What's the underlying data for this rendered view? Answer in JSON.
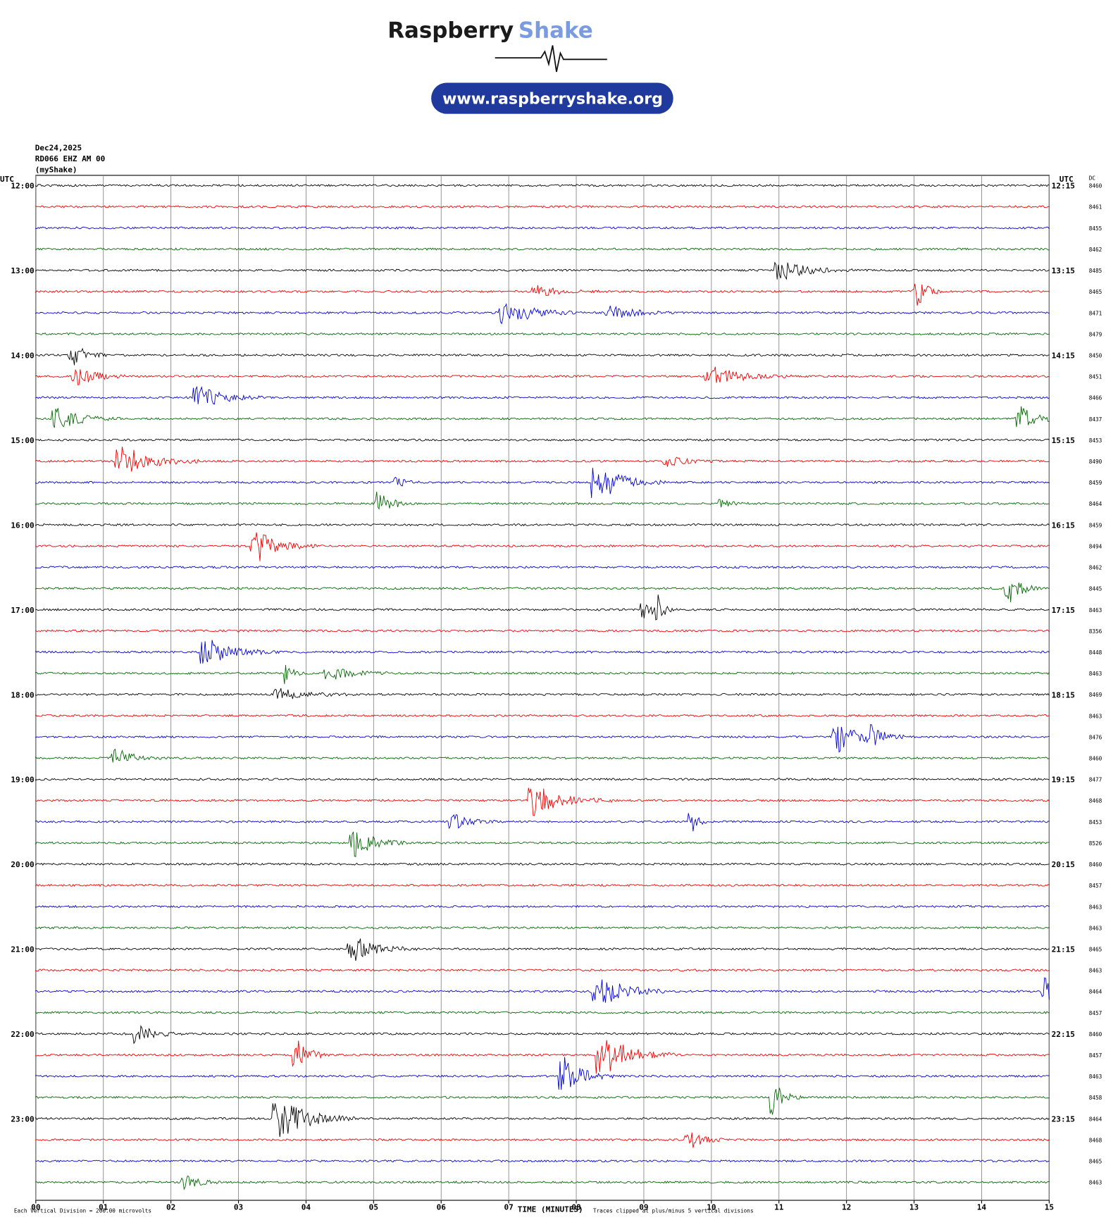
{
  "header": {
    "brand_1": "Raspberry",
    "brand_2": "Shake",
    "url": "www.raspberryshake.org",
    "date": "Dec24,2025",
    "station": "RD066 EHZ AM 00",
    "source": "(myShake)"
  },
  "left_axis": {
    "title": "UTC",
    "labels": [
      "12:00",
      "13:00",
      "14:00",
      "15:00",
      "16:00",
      "17:00",
      "18:00",
      "19:00",
      "20:00",
      "21:00",
      "22:00",
      "23:00"
    ]
  },
  "right_axis": {
    "title": "UTC",
    "labels": [
      "12:15",
      "13:15",
      "14:15",
      "15:15",
      "16:15",
      "17:15",
      "18:15",
      "19:15",
      "20:15",
      "21:15",
      "22:15",
      "23:15"
    ]
  },
  "dc": {
    "title": "DC",
    "values": [
      8460,
      8461,
      8455,
      8462,
      8485,
      8465,
      8471,
      8479,
      8450,
      8451,
      8466,
      8437,
      8453,
      8490,
      8459,
      8464,
      8459,
      8494,
      8462,
      8445,
      8463,
      8356,
      8448,
      8463,
      8469,
      8463,
      8476,
      8460,
      8477,
      8468,
      8453,
      8526,
      8460,
      8457,
      8463,
      8463,
      8465,
      8463,
      8464,
      8457,
      8460,
      8457,
      8463,
      8458,
      8464,
      8468,
      8465,
      8463
    ]
  },
  "x_axis": {
    "title": "TIME (MINUTES)",
    "labels": [
      "00",
      "01",
      "02",
      "03",
      "04",
      "05",
      "06",
      "07",
      "08",
      "09",
      "10",
      "11",
      "12",
      "13",
      "14",
      "15"
    ]
  },
  "footer": {
    "scale": "Each Vertical Division =  200.00 microvolts",
    "clip": "Traces clipped at plus/minus 5 vertical divisions"
  }
}
